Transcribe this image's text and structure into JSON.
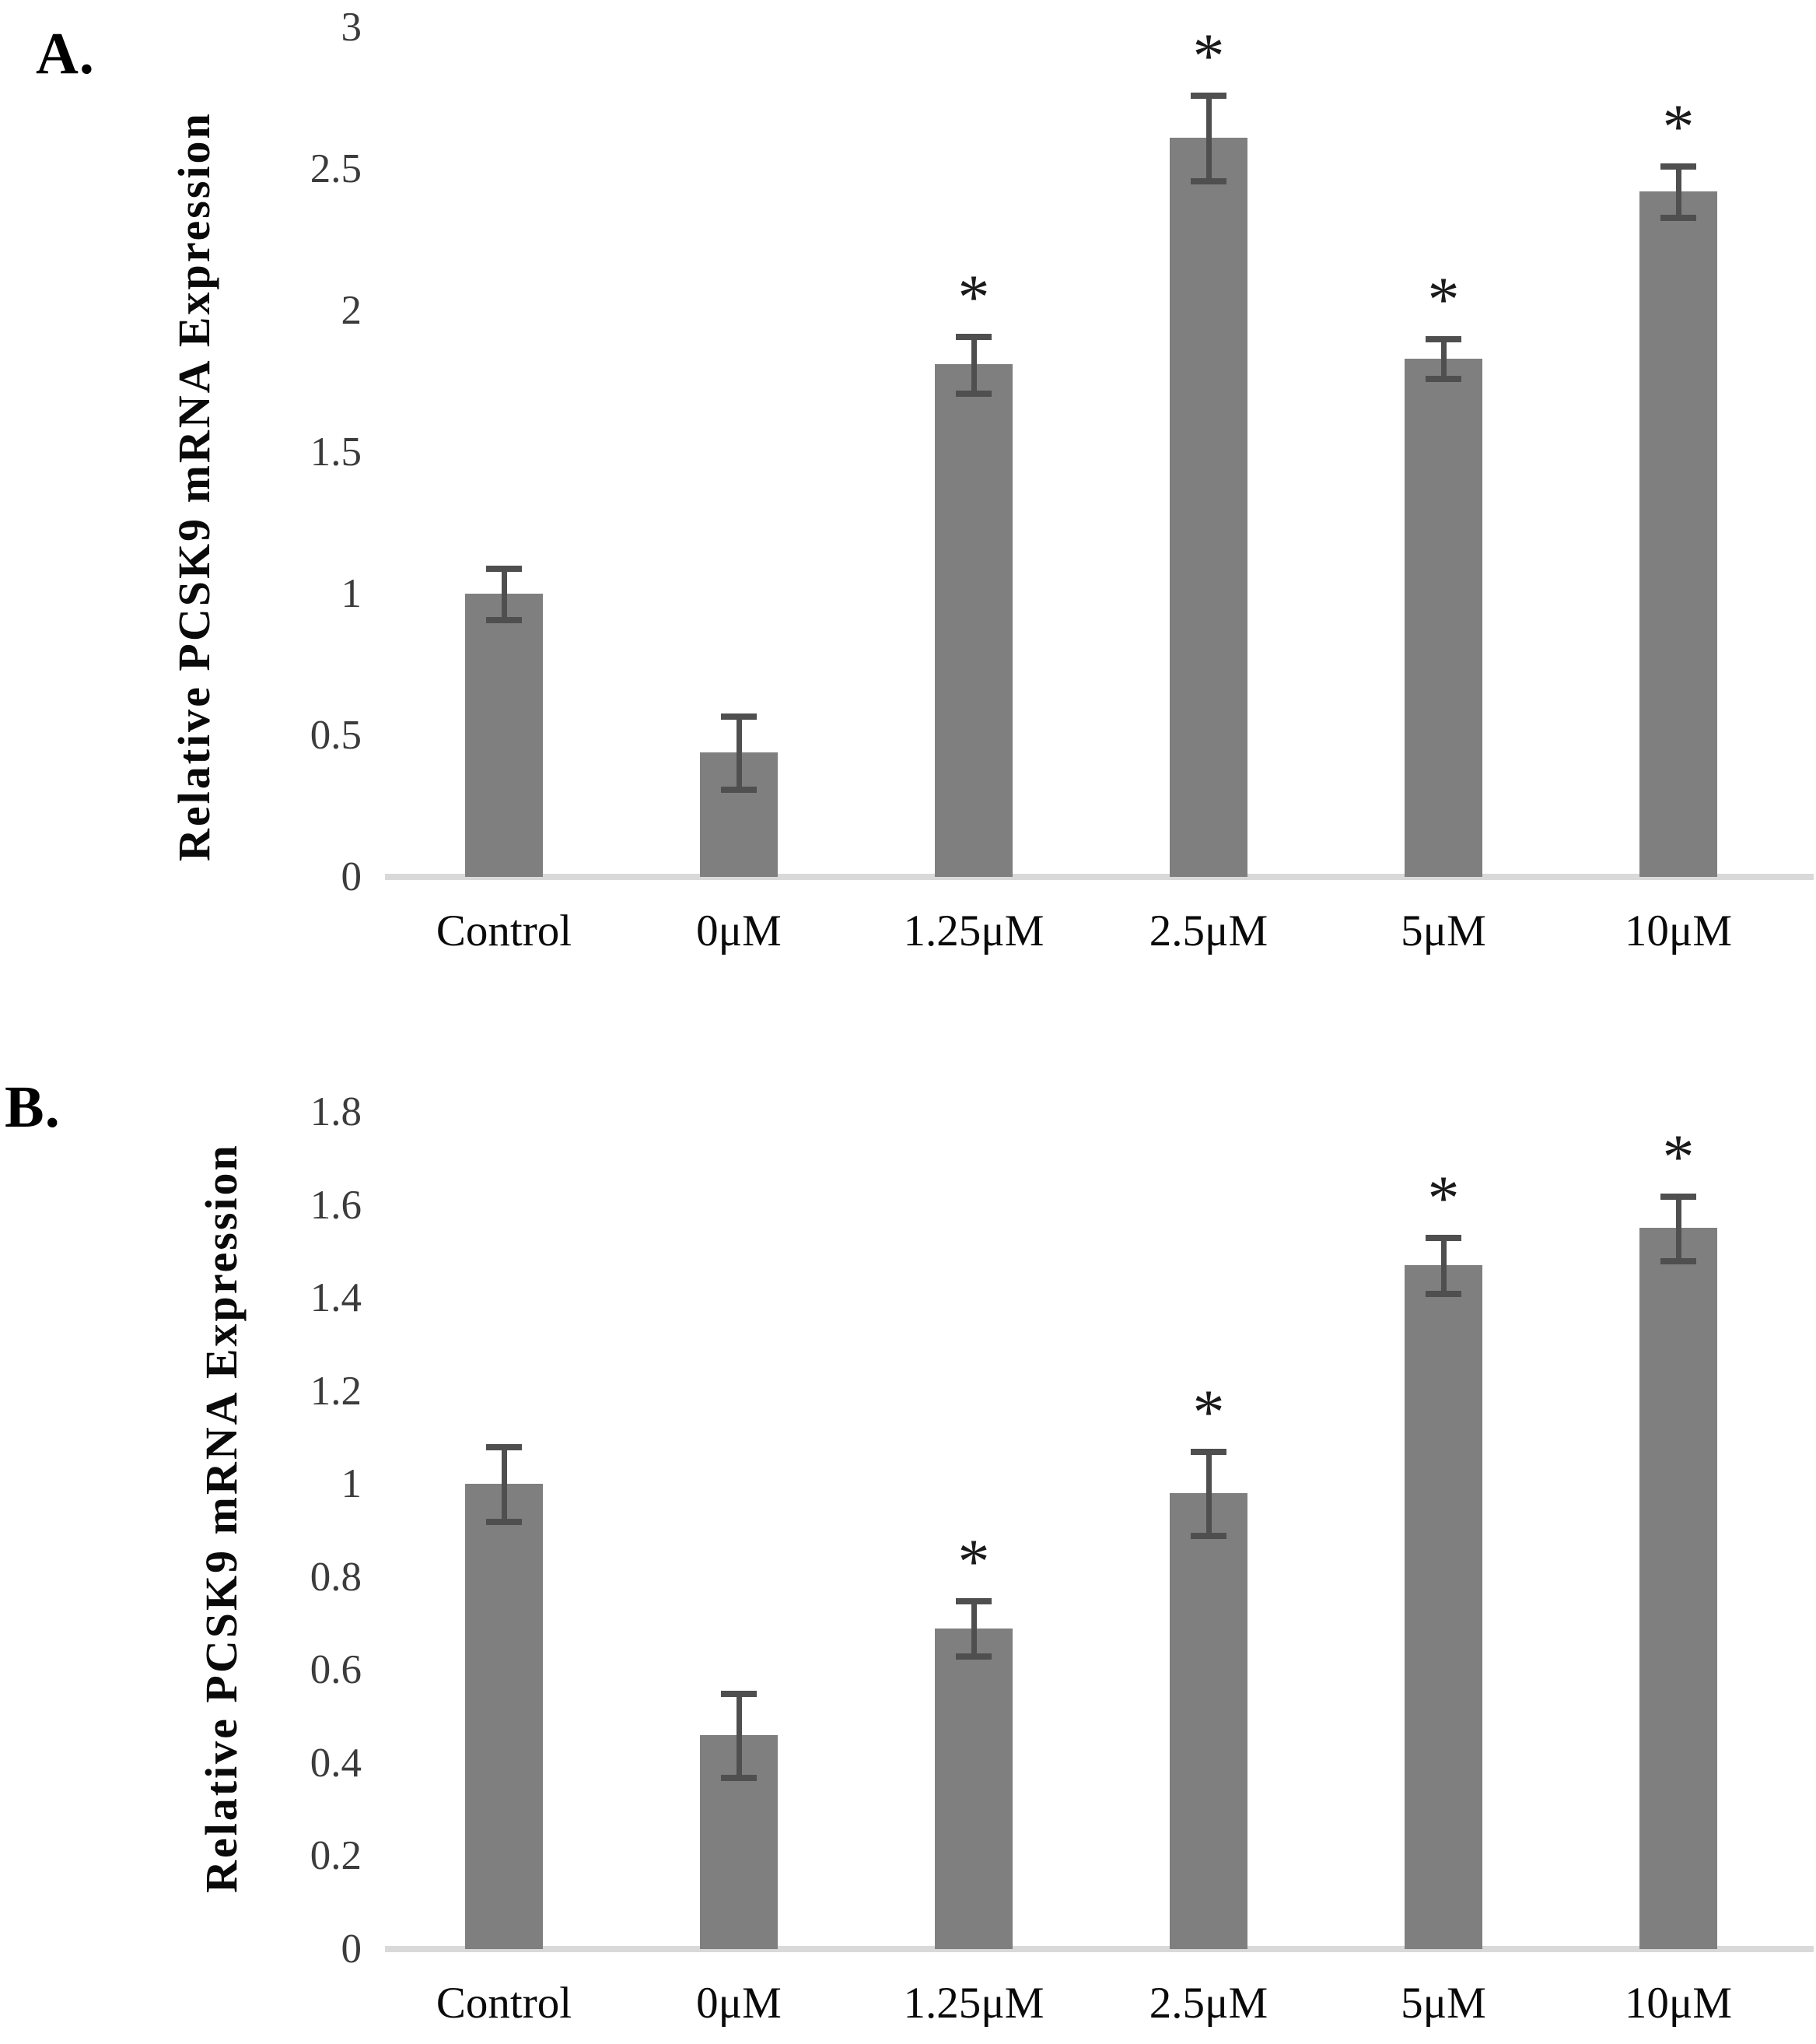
{
  "figure_title": "",
  "chart_data": [
    {
      "panel_label": "A.",
      "type": "bar",
      "title": "",
      "xlabel": "",
      "ylabel": "Relative PCSK9 mRNA Expression",
      "categories": [
        "Control",
        "0μM",
        "1.25μM",
        "2.5μM",
        "5μM",
        "10μM"
      ],
      "values": [
        1.0,
        0.44,
        1.81,
        2.61,
        1.83,
        2.42
      ],
      "errors": [
        0.09,
        0.13,
        0.1,
        0.15,
        0.07,
        0.09
      ],
      "significance": [
        "",
        "",
        "*",
        "*",
        "*",
        "*"
      ],
      "ylim": [
        0,
        3
      ],
      "ytick_step": 0.5,
      "yticks": [
        "0",
        "0.5",
        "1",
        "1.5",
        "2",
        "2.5",
        "3"
      ],
      "grid": false,
      "legend": null,
      "bar_color": "#7f7f7f",
      "error_bar_color": "#4f4f4f",
      "axis_line_color": "#d9d9d9"
    },
    {
      "panel_label": "B.",
      "type": "bar",
      "title": "",
      "xlabel": "",
      "ylabel": "Relative PCSK9 mRNA Expression",
      "categories": [
        "Control",
        "0μM",
        "1.25μM",
        "2.5μM",
        "5μM",
        "10μM"
      ],
      "values": [
        1.0,
        0.46,
        0.69,
        0.98,
        1.47,
        1.55
      ],
      "errors": [
        0.08,
        0.09,
        0.06,
        0.09,
        0.06,
        0.07
      ],
      "significance": [
        "",
        "",
        "*",
        "*",
        "*",
        "*"
      ],
      "ylim": [
        0,
        1.8
      ],
      "ytick_step": 0.2,
      "yticks": [
        "0",
        "0.2",
        "0.4",
        "0.6",
        "0.8",
        "1",
        "1.2",
        "1.4",
        "1.6",
        "1.8"
      ],
      "grid": false,
      "legend": null,
      "bar_color": "#7f7f7f",
      "error_bar_color": "#4f4f4f",
      "axis_line_color": "#d9d9d9"
    }
  ]
}
